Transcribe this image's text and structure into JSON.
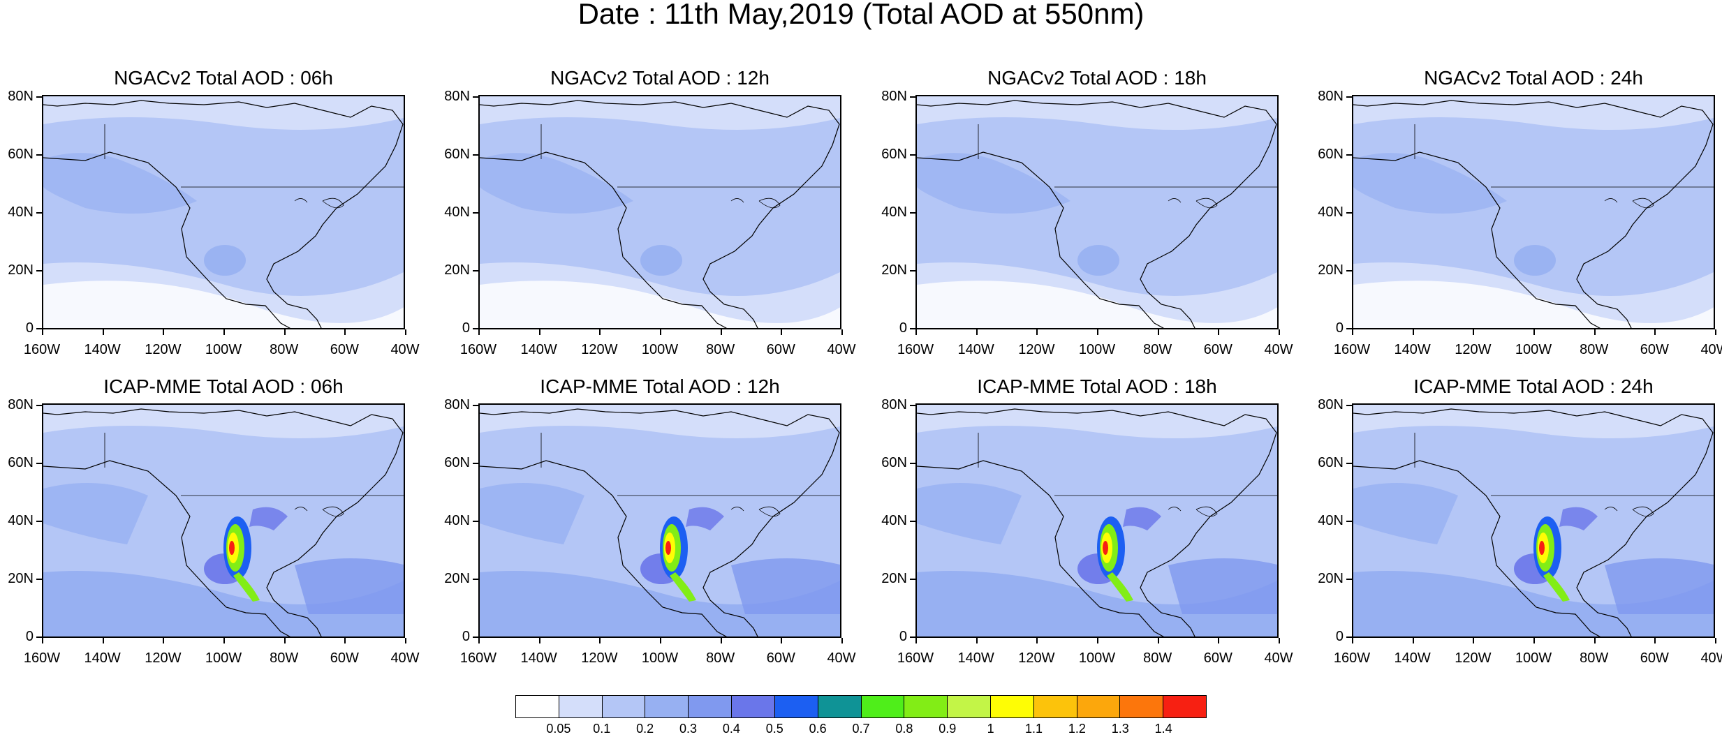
{
  "main_title": "Date : 11th May,2019 (Total AOD at 550nm)",
  "axes": {
    "lat_labels": [
      "80N",
      "60N",
      "40N",
      "20N",
      "0"
    ],
    "lon_labels": [
      "160W",
      "140W",
      "120W",
      "100W",
      "80W",
      "60W",
      "40W"
    ]
  },
  "colors": {
    "land_outline": "#000000",
    "background_low": "#cdd9f6"
  },
  "panels": [
    {
      "title": "NGACv2 Total AOD : 06h"
    },
    {
      "title": "NGACv2 Total AOD : 12h"
    },
    {
      "title": "NGACv2 Total AOD : 18h"
    },
    {
      "title": "NGACv2 Total AOD : 24h"
    },
    {
      "title": "ICAP-MME Total AOD : 06h"
    },
    {
      "title": "ICAP-MME Total AOD : 12h"
    },
    {
      "title": "ICAP-MME Total AOD : 18h"
    },
    {
      "title": "ICAP-MME Total AOD : 24h"
    }
  ],
  "colorbar": {
    "labels": [
      "0.05",
      "0.1",
      "0.2",
      "0.3",
      "0.4",
      "0.5",
      "0.6",
      "0.7",
      "0.8",
      "0.9",
      "1",
      "1.1",
      "1.2",
      "1.3",
      "1.4"
    ],
    "colors": [
      "#ffffff",
      "#d4defa",
      "#b4c6f6",
      "#97b0f2",
      "#8099ef",
      "#6a76ea",
      "#1c5ff2",
      "#0f9396",
      "#4fee1a",
      "#82ed16",
      "#c3f547",
      "#fefd05",
      "#fcc30b",
      "#fca70c",
      "#fc760c",
      "#f72012"
    ]
  }
}
